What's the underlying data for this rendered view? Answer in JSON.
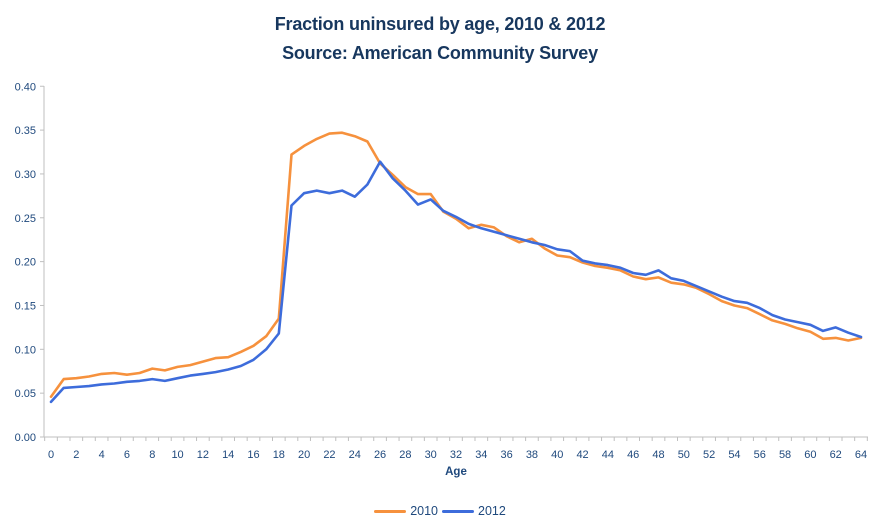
{
  "colors": {
    "title_text": "#17375E",
    "axis_text": "#1F497D",
    "axis_line": "#BFBFBF",
    "series_2010": "#F6913D",
    "series_2012": "#3D6CDB",
    "background": "#FFFFFF"
  },
  "legend": {
    "items": [
      "2010",
      "2012"
    ]
  },
  "chart_data": {
    "type": "line",
    "title": "Fraction uninsured by age, 2010 & 2012",
    "subtitle": "Source: American Community Survey",
    "xlabel": "Age",
    "ylabel": "",
    "xlim": [
      0,
      64
    ],
    "ylim": [
      0,
      0.4
    ],
    "grid": false,
    "legend_position": "bottom-center",
    "y_ticks": [
      "0.00",
      "0.05",
      "0.10",
      "0.15",
      "0.20",
      "0.25",
      "0.30",
      "0.35",
      "0.40"
    ],
    "x_ticks": [
      0,
      2,
      4,
      6,
      8,
      10,
      12,
      14,
      16,
      18,
      20,
      22,
      24,
      26,
      28,
      30,
      32,
      34,
      36,
      38,
      40,
      42,
      44,
      46,
      48,
      50,
      52,
      54,
      56,
      58,
      60,
      62,
      64
    ],
    "x": [
      0,
      1,
      2,
      3,
      4,
      5,
      6,
      7,
      8,
      9,
      10,
      11,
      12,
      13,
      14,
      15,
      16,
      17,
      18,
      19,
      20,
      21,
      22,
      23,
      24,
      25,
      26,
      27,
      28,
      29,
      30,
      31,
      32,
      33,
      34,
      35,
      36,
      37,
      38,
      39,
      40,
      41,
      42,
      43,
      44,
      45,
      46,
      47,
      48,
      49,
      50,
      51,
      52,
      53,
      54,
      55,
      56,
      57,
      58,
      59,
      60,
      61,
      62,
      63,
      64
    ],
    "series": [
      {
        "name": "2010",
        "color": "#F6913D",
        "values": [
          0.046,
          0.066,
          0.067,
          0.069,
          0.072,
          0.073,
          0.071,
          0.073,
          0.078,
          0.076,
          0.08,
          0.082,
          0.086,
          0.09,
          0.091,
          0.097,
          0.104,
          0.115,
          0.135,
          0.322,
          0.332,
          0.34,
          0.346,
          0.347,
          0.343,
          0.337,
          0.312,
          0.299,
          0.285,
          0.277,
          0.277,
          0.257,
          0.249,
          0.238,
          0.242,
          0.239,
          0.229,
          0.222,
          0.226,
          0.215,
          0.207,
          0.205,
          0.199,
          0.195,
          0.193,
          0.19,
          0.183,
          0.18,
          0.182,
          0.176,
          0.174,
          0.17,
          0.163,
          0.155,
          0.15,
          0.147,
          0.14,
          0.133,
          0.129,
          0.124,
          0.12,
          0.112,
          0.113,
          0.11,
          0.113
        ]
      },
      {
        "name": "2012",
        "color": "#3D6CDB",
        "values": [
          0.04,
          0.056,
          0.057,
          0.058,
          0.06,
          0.061,
          0.063,
          0.064,
          0.066,
          0.064,
          0.067,
          0.07,
          0.072,
          0.074,
          0.077,
          0.081,
          0.088,
          0.1,
          0.118,
          0.264,
          0.278,
          0.281,
          0.278,
          0.281,
          0.274,
          0.288,
          0.314,
          0.295,
          0.281,
          0.265,
          0.271,
          0.258,
          0.251,
          0.243,
          0.238,
          0.234,
          0.23,
          0.226,
          0.222,
          0.219,
          0.214,
          0.212,
          0.201,
          0.198,
          0.196,
          0.193,
          0.187,
          0.185,
          0.19,
          0.181,
          0.178,
          0.172,
          0.166,
          0.16,
          0.155,
          0.153,
          0.147,
          0.139,
          0.134,
          0.131,
          0.128,
          0.121,
          0.125,
          0.119,
          0.114
        ]
      }
    ]
  }
}
